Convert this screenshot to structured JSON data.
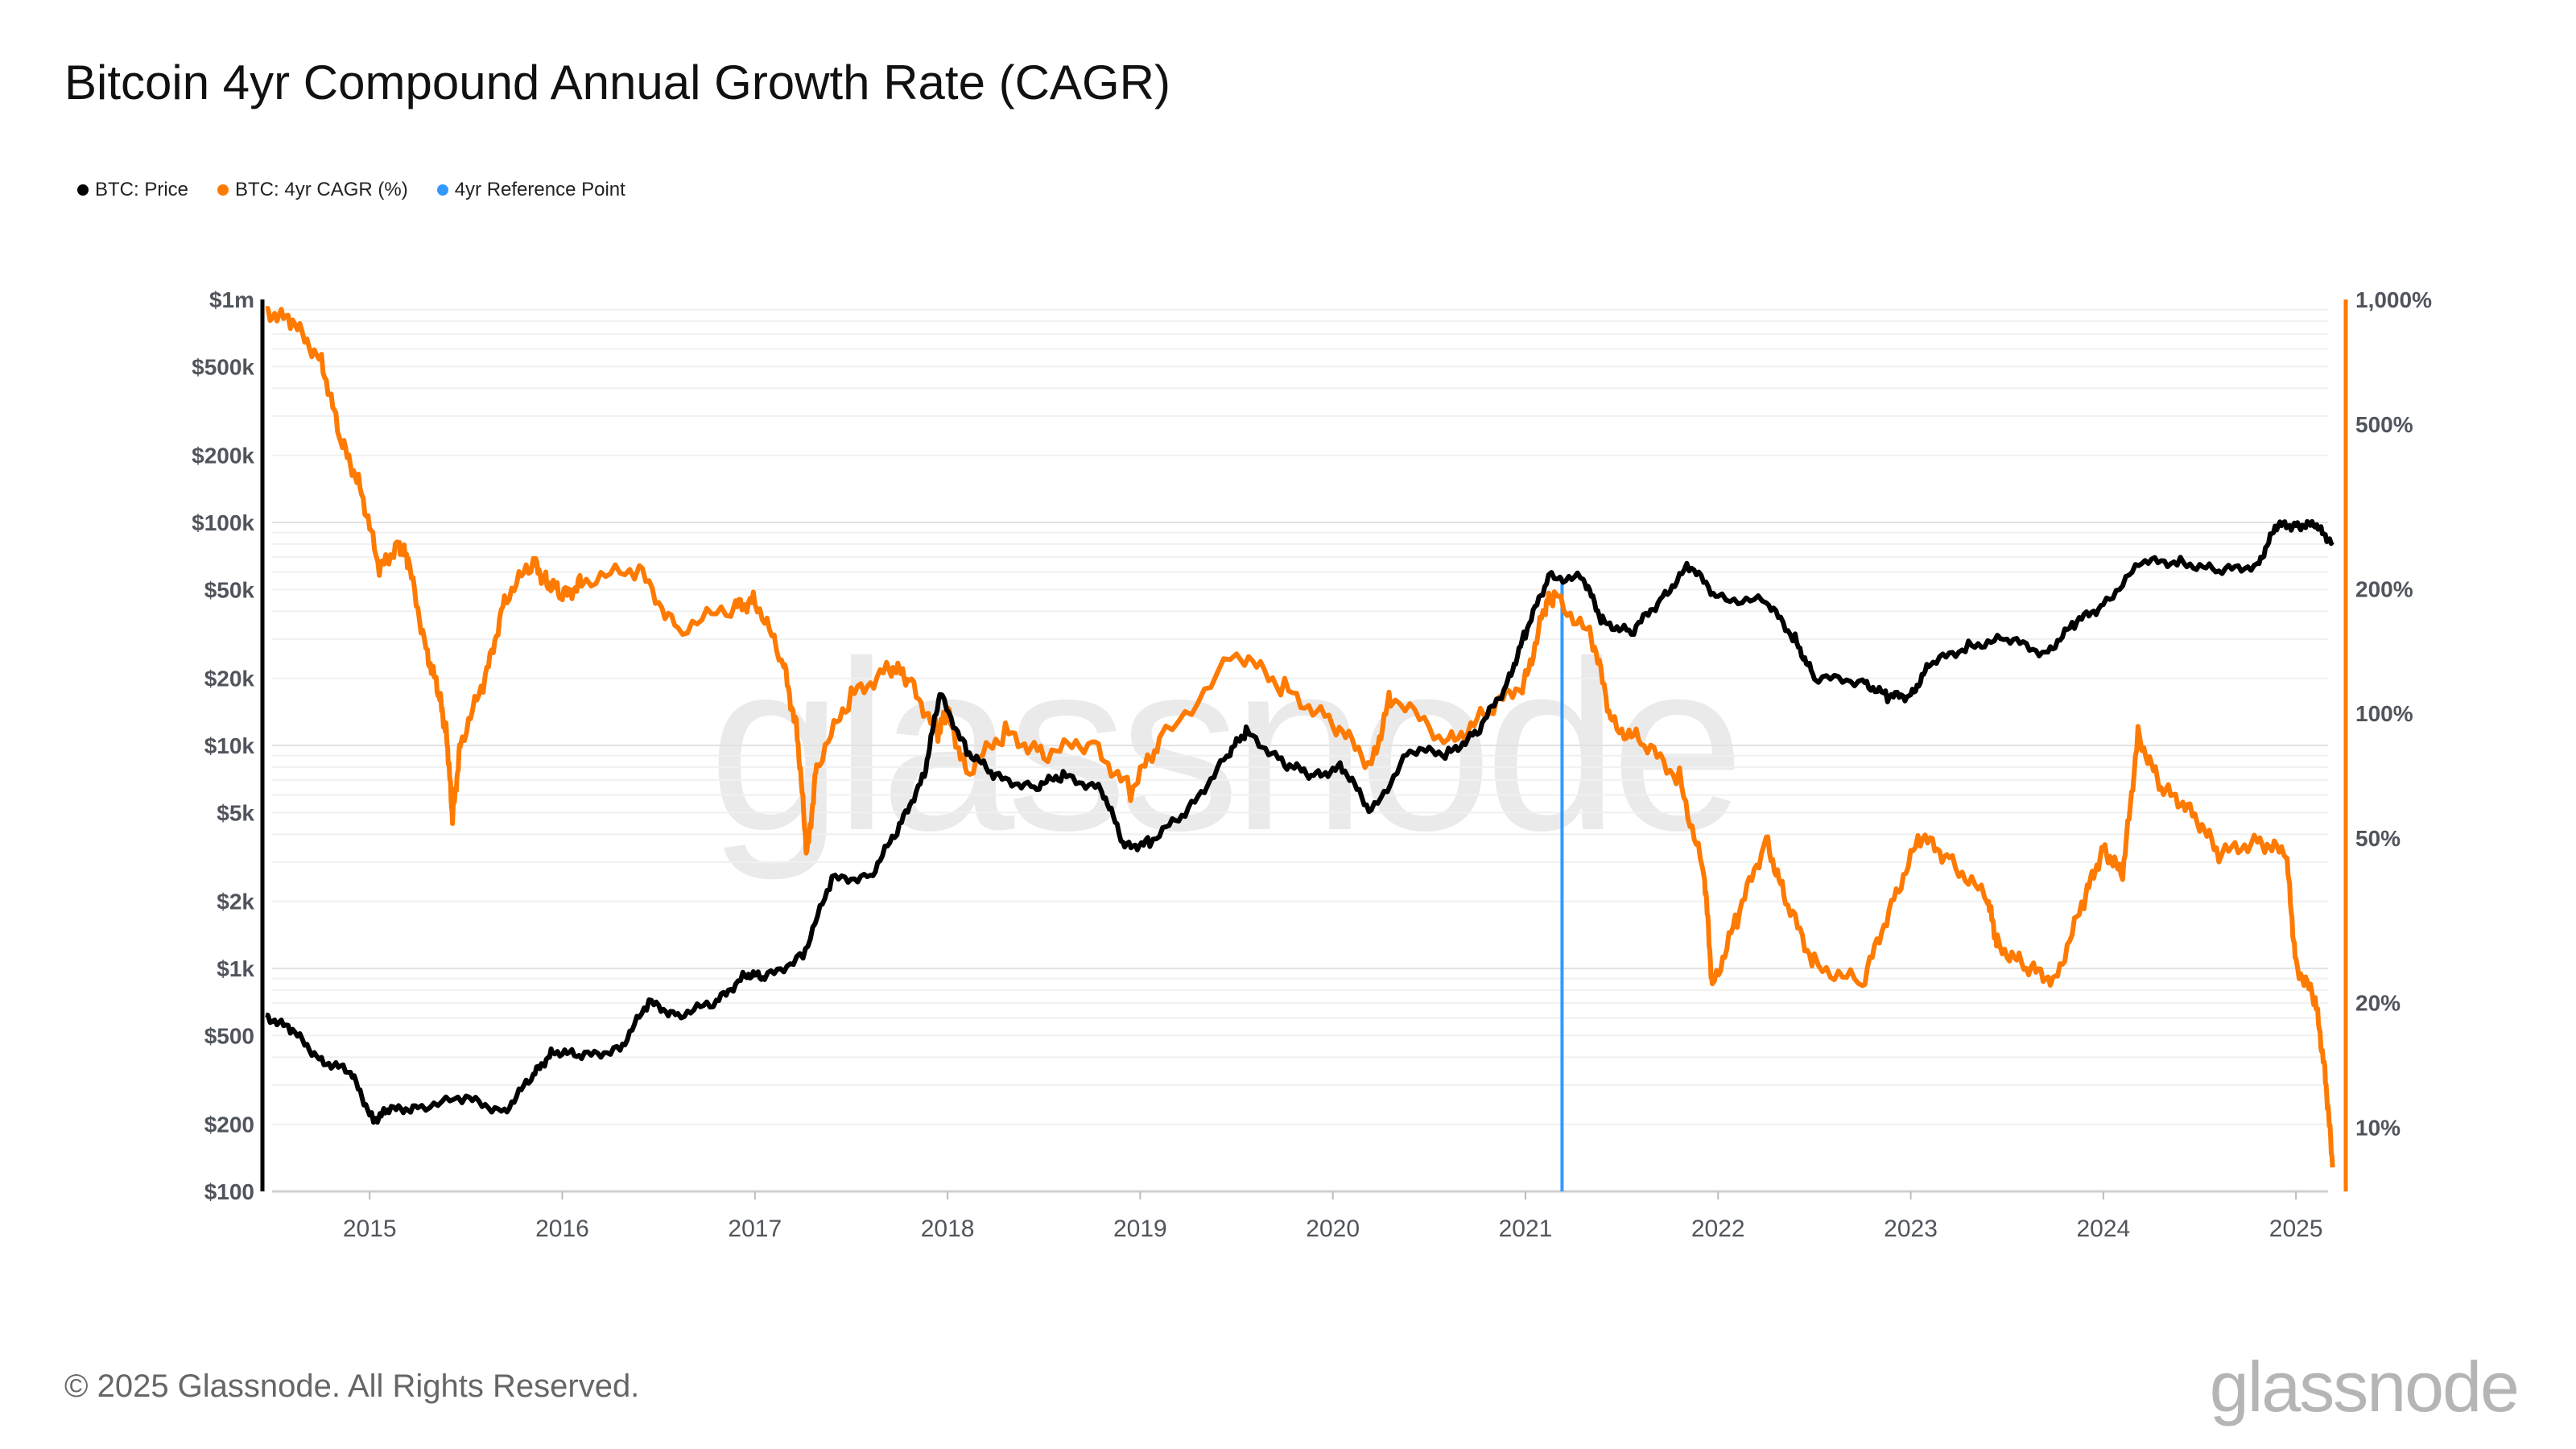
{
  "title": "Bitcoin 4yr Compound Annual Growth Rate (CAGR)",
  "footer": "© 2025 Glassnode. All Rights Reserved.",
  "logo": "glassnode",
  "watermark": "glassnode",
  "colors": {
    "price": "#000000",
    "cagr": "#ff7a00",
    "reference": "#3399ff"
  },
  "chart_data": {
    "type": "line",
    "title": "Bitcoin 4yr Compound Annual Growth Rate (CAGR)",
    "legend": [
      "BTC: Price",
      "BTC: 4yr CAGR (%)",
      "4yr Reference Point"
    ],
    "legend_placement": "top-left",
    "x_range": [
      2014.46,
      2025.2
    ],
    "x_ticks": [
      "2015",
      "2016",
      "2017",
      "2018",
      "2019",
      "2020",
      "2021",
      "2022",
      "2023",
      "2024",
      "2025"
    ],
    "y_left": {
      "scale": "log",
      "range": [
        100,
        1000000
      ],
      "ticks": [
        100,
        200,
        500,
        1000,
        2000,
        5000,
        10000,
        20000,
        50000,
        100000,
        200000,
        500000,
        1000000
      ],
      "tick_labels": [
        "$100",
        "$200",
        "$500",
        "$1k",
        "$2k",
        "$5k",
        "$10k",
        "$20k",
        "$50k",
        "$100k",
        "$200k",
        "$500k",
        "$1m"
      ]
    },
    "y_right": {
      "scale": "log",
      "range": [
        7,
        1000
      ],
      "ticks": [
        10,
        20,
        50,
        100,
        200,
        500,
        1000
      ],
      "tick_labels": [
        "10%",
        "20%",
        "50%",
        "100%",
        "200%",
        "500%",
        "1,000%"
      ]
    },
    "grid": true,
    "reference_x": 2021.19,
    "series": [
      {
        "name": "BTC: Price",
        "axis": "left",
        "x": [
          2014.46,
          2014.6,
          2014.75,
          2014.9,
          2015.02,
          2015.1,
          2015.25,
          2015.5,
          2015.7,
          2015.85,
          2015.95,
          2016.1,
          2016.3,
          2016.45,
          2016.6,
          2016.8,
          2016.95,
          2017.05,
          2017.25,
          2017.4,
          2017.6,
          2017.75,
          2017.88,
          2017.96,
          2018.1,
          2018.25,
          2018.45,
          2018.6,
          2018.8,
          2018.92,
          2019.05,
          2019.25,
          2019.45,
          2019.55,
          2019.75,
          2019.9,
          2020.05,
          2020.2,
          2020.4,
          2020.6,
          2020.75,
          2020.9,
          2021.0,
          2021.12,
          2021.3,
          2021.4,
          2021.55,
          2021.7,
          2021.85,
          2022.0,
          2022.25,
          2022.4,
          2022.5,
          2022.75,
          2022.88,
          2023.0,
          2023.1,
          2023.3,
          2023.5,
          2023.7,
          2023.85,
          2024.0,
          2024.2,
          2024.4,
          2024.6,
          2024.8,
          2024.9,
          2025.0,
          2025.1,
          2025.19
        ],
        "values": [
          620,
          520,
          390,
          340,
          210,
          230,
          240,
          260,
          230,
          330,
          430,
          400,
          440,
          700,
          620,
          700,
          950,
          900,
          1150,
          2500,
          2600,
          4300,
          7500,
          17000,
          9500,
          7200,
          6500,
          7300,
          6400,
          3500,
          3700,
          5100,
          9000,
          11500,
          8300,
          7300,
          8000,
          5000,
          9500,
          9200,
          11500,
          18500,
          32000,
          57000,
          56000,
          36000,
          32000,
          45000,
          64000,
          46000,
          44000,
          30000,
          20000,
          19500,
          16500,
          16800,
          23000,
          28000,
          30000,
          26000,
          35000,
          43000,
          66000,
          67000,
          60000,
          65000,
          96000,
          98000,
          96000,
          82000
        ]
      },
      {
        "name": "BTC: 4yr CAGR (%)",
        "axis": "right",
        "x": [
          2014.46,
          2014.6,
          2014.75,
          2014.85,
          2014.95,
          2015.05,
          2015.15,
          2015.2,
          2015.3,
          2015.36,
          2015.4,
          2015.43,
          2015.47,
          2015.6,
          2015.7,
          2015.85,
          2015.92,
          2016.0,
          2016.1,
          2016.4,
          2016.6,
          2016.9,
          2017.0,
          2017.15,
          2017.22,
          2017.27,
          2017.32,
          2017.5,
          2017.7,
          2017.8,
          2017.95,
          2018.0,
          2018.1,
          2018.3,
          2018.5,
          2018.75,
          2018.95,
          2019.1,
          2019.5,
          2019.75,
          2020.0,
          2020.2,
          2020.3,
          2020.6,
          2020.8,
          2021.0,
          2021.1,
          2021.15,
          2021.35,
          2021.45,
          2021.6,
          2021.8,
          2021.93,
          2021.97,
          2022.1,
          2022.25,
          2022.35,
          2022.5,
          2022.75,
          2022.9,
          2023.05,
          2023.2,
          2023.4,
          2023.45,
          2023.6,
          2023.75,
          2023.9,
          2024.0,
          2024.1,
          2024.18,
          2024.3,
          2024.45,
          2024.6,
          2024.8,
          2024.95,
          2025.0,
          2025.1,
          2025.15,
          2025.19
        ],
        "values": [
          950,
          870,
          720,
          450,
          360,
          220,
          260,
          230,
          140,
          110,
          90,
          55,
          85,
          120,
          190,
          230,
          210,
          190,
          210,
          220,
          160,
          180,
          190,
          130,
          90,
          45,
          75,
          110,
          130,
          120,
          90,
          100,
          72,
          90,
          80,
          85,
          65,
          85,
          140,
          115,
          95,
          75,
          110,
          85,
          100,
          120,
          180,
          195,
          150,
          95,
          85,
          70,
          40,
          22,
          32,
          50,
          35,
          25,
          22,
          35,
          50,
          45,
          35,
          28,
          24,
          23,
          35,
          48,
          40,
          90,
          65,
          60,
          45,
          50,
          45,
          25,
          20,
          14,
          8
        ]
      }
    ]
  }
}
